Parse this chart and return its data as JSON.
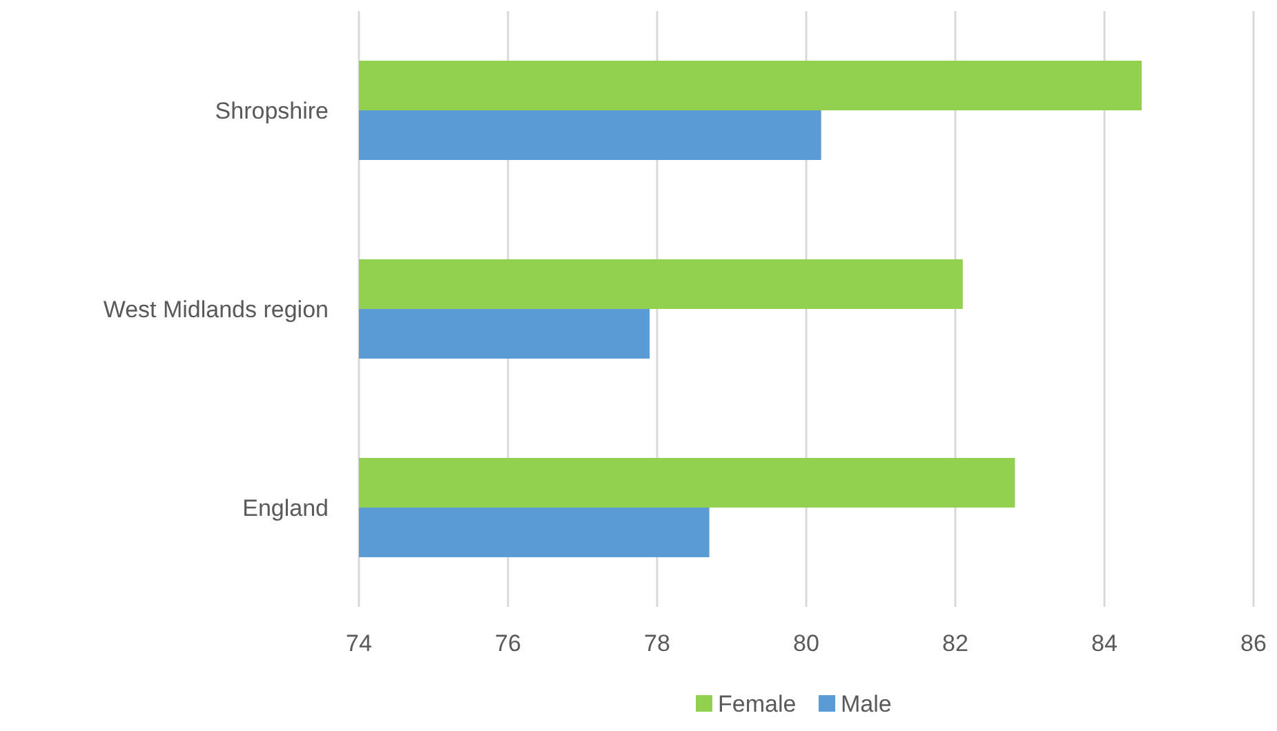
{
  "chart_data": {
    "type": "bar",
    "orientation": "horizontal",
    "categories": [
      "Shropshire",
      "West Midlands region",
      "England"
    ],
    "series": [
      {
        "name": "Female",
        "color": "#92d050",
        "values": [
          84.5,
          82.1,
          82.8
        ]
      },
      {
        "name": "Male",
        "color": "#5b9bd5",
        "values": [
          80.2,
          77.9,
          78.7
        ]
      }
    ],
    "xlim": [
      74,
      86
    ],
    "xticks": [
      74,
      76,
      78,
      80,
      82,
      84,
      86
    ],
    "grid": "x",
    "legend": "bottom"
  }
}
